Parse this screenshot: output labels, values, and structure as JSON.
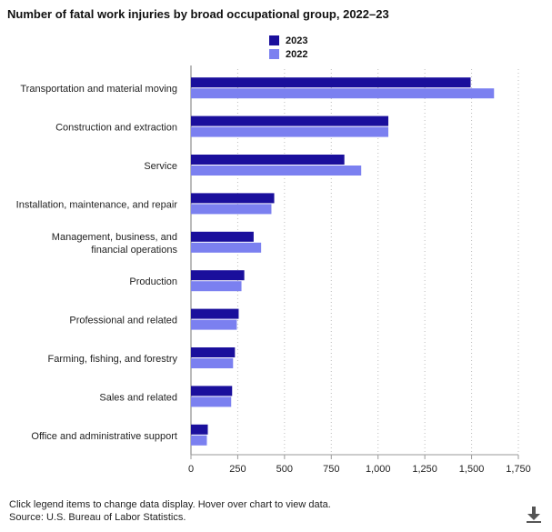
{
  "chart_data": {
    "type": "bar",
    "orientation": "horizontal",
    "title": "Number of fatal work injuries by broad occupational group, 2022–23",
    "categories": [
      "Transportation and material moving",
      "Construction and extraction",
      "Service",
      "Installation, maintenance, and repair",
      "Management, business, and financial operations",
      "Production",
      "Professional and related",
      "Farming, fishing, and forestry",
      "Sales and related",
      "Office and administrative support"
    ],
    "category_label_lines": [
      [
        "Transportation and material moving"
      ],
      [
        "Construction and extraction"
      ],
      [
        "Service"
      ],
      [
        "Installation, maintenance, and repair"
      ],
      [
        "Management, business, and",
        "financial operations"
      ],
      [
        "Production"
      ],
      [
        "Professional and related"
      ],
      [
        "Farming, fishing, and forestry"
      ],
      [
        "Sales and related"
      ],
      [
        "Office and administrative support"
      ]
    ],
    "series": [
      {
        "name": "2023",
        "color": "#1a0f9c",
        "values": [
          1495,
          1055,
          820,
          445,
          335,
          285,
          255,
          235,
          220,
          90
        ]
      },
      {
        "name": "2022",
        "color": "#7b80f0",
        "values": [
          1620,
          1055,
          910,
          430,
          375,
          270,
          245,
          225,
          215,
          85
        ]
      }
    ],
    "xlim": [
      0,
      1750
    ],
    "xticks": [
      0,
      250,
      500,
      750,
      1000,
      1250,
      1500,
      1750
    ],
    "xtick_labels": [
      "0",
      "250",
      "500",
      "750",
      "1,000",
      "1,250",
      "1,500",
      "1,750"
    ],
    "grid": "vertical dotted",
    "legend_position": "top-center"
  },
  "footnotes": {
    "instructions": "Click legend items to change data display. Hover over chart to view data.",
    "source": "Source: U.S. Bureau of Labor Statistics."
  },
  "icons": {
    "download": "download-icon"
  }
}
